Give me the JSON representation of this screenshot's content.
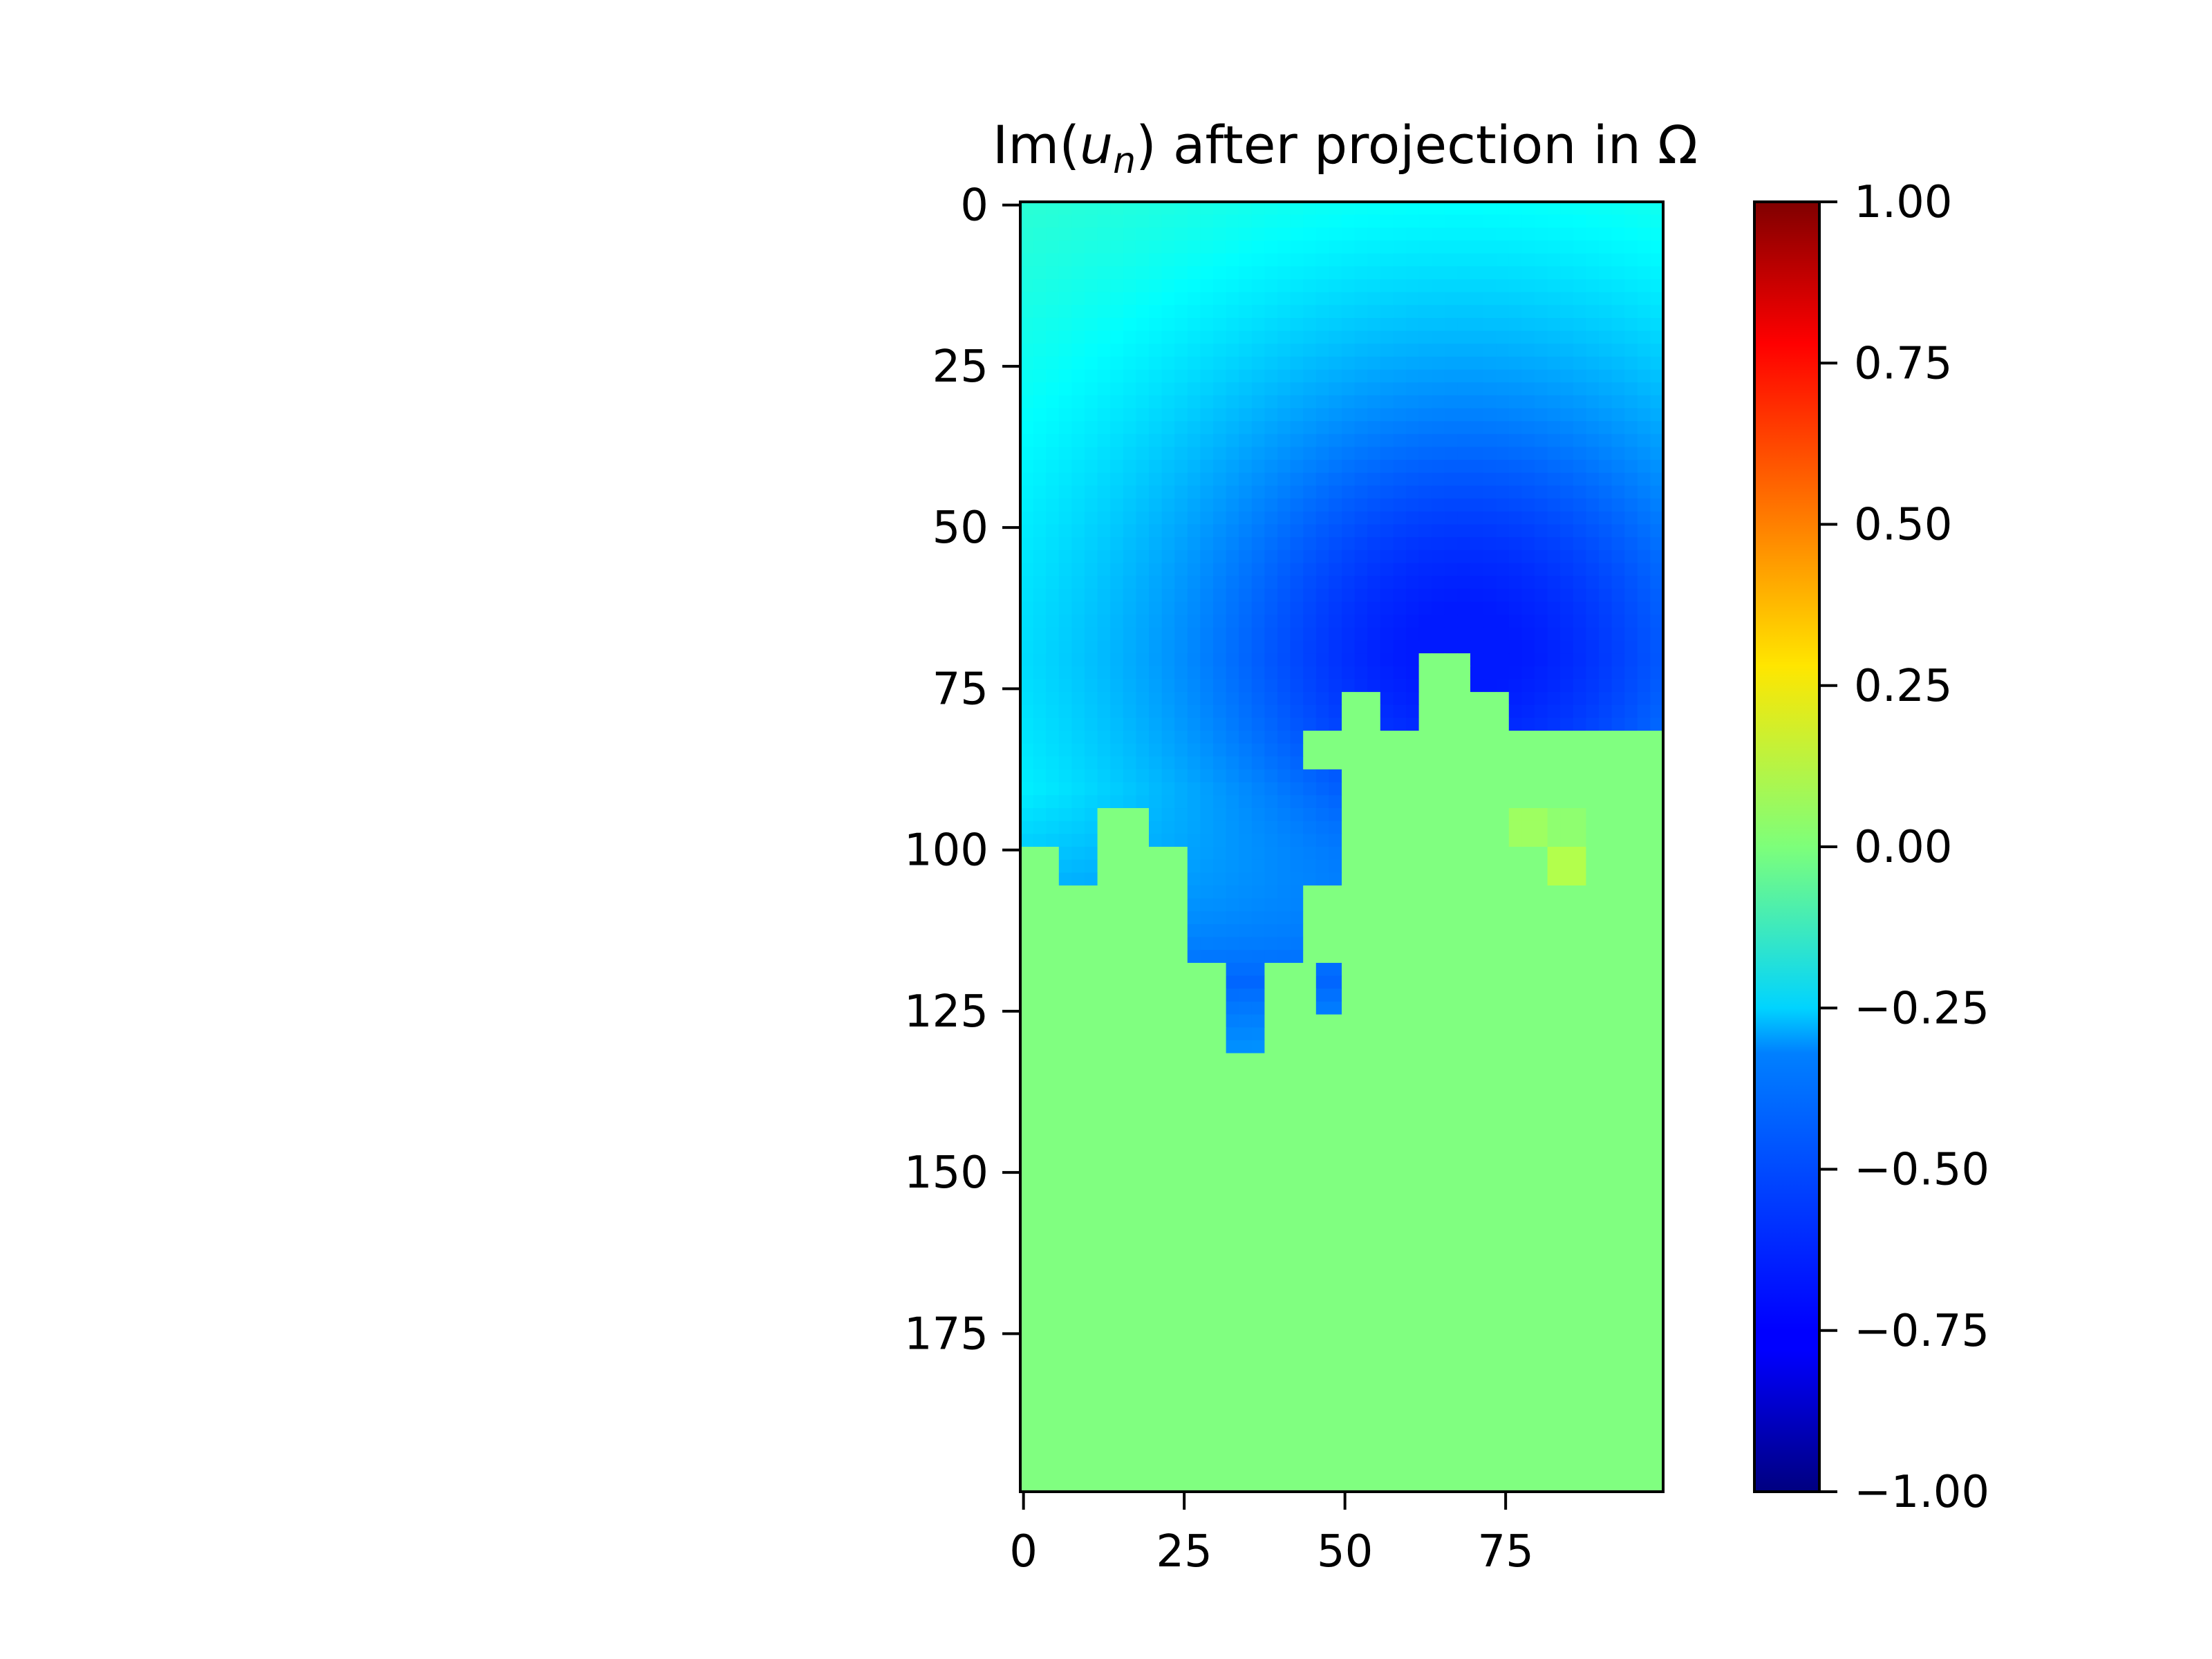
{
  "chart_data": {
    "type": "heatmap",
    "title": {
      "prefix": "Im(",
      "symbol": "u",
      "subscript": "n",
      "suffix": ") after projection in Ω"
    },
    "xlabel": "",
    "ylabel": "",
    "x_range": [
      0,
      99
    ],
    "y_range": [
      0,
      199
    ],
    "y_axis_inverted": true,
    "x_ticks": [
      "0",
      "25",
      "50",
      "75"
    ],
    "x_tick_values": [
      0,
      25,
      50,
      75
    ],
    "y_ticks": [
      "0",
      "25",
      "50",
      "75",
      "100",
      "125",
      "150",
      "175"
    ],
    "y_tick_values": [
      0,
      25,
      50,
      75,
      100,
      125,
      150,
      175
    ],
    "colormap": "jet",
    "colorbar": {
      "range": [
        -1.0,
        1.0
      ],
      "ticks": [
        "1.00",
        "0.75",
        "0.50",
        "0.25",
        "0.00",
        "−0.25",
        "−0.50",
        "−0.75",
        "−1.00"
      ],
      "tick_values": [
        1.0,
        0.75,
        0.5,
        0.25,
        0.0,
        -0.25,
        -0.5,
        -0.75,
        -1.0
      ]
    },
    "field": {
      "background_value": 0.0,
      "well_center": [
        68,
        68
      ],
      "well_min_value": -0.58,
      "top_edge_value": -0.15,
      "boundary_row": 100,
      "max_region_value": 0.1
    },
    "region_outside_omega": {
      "value": 0.0,
      "cells": [
        [
          0,
          100,
          6,
          200
        ],
        [
          6,
          106,
          12,
          200
        ],
        [
          12,
          94,
          20,
          200
        ],
        [
          20,
          100,
          25,
          106
        ],
        [
          20,
          106,
          25,
          200
        ],
        [
          25,
          118,
          32,
          125
        ],
        [
          25,
          125,
          32,
          200
        ],
        [
          32,
          131,
          38,
          200
        ],
        [
          38,
          118,
          45,
          200
        ],
        [
          45,
          125,
          50,
          200
        ],
        [
          50,
          118,
          56,
          200
        ],
        [
          56,
          200,
          56,
          200
        ]
      ],
      "bands": [
        [
          44,
          81,
          50,
          87
        ],
        [
          50,
          75,
          56,
          81
        ],
        [
          50,
          81,
          62,
          200
        ],
        [
          56,
          81,
          62,
          87
        ],
        [
          62,
          69,
          70,
          200
        ],
        [
          70,
          75,
          76,
          200
        ],
        [
          70,
          81,
          100,
          200
        ],
        [
          44,
          106,
          50,
          112
        ],
        [
          44,
          112,
          50,
          118
        ],
        [
          50,
          100,
          56,
          112
        ],
        [
          50,
          94,
          56,
          100
        ],
        [
          56,
          87,
          62,
          200
        ],
        [
          76,
          87,
          82,
          94
        ],
        [
          76,
          94,
          82,
          200
        ],
        [
          82,
          100,
          100,
          200
        ],
        [
          88,
          94,
          94,
          100
        ],
        [
          94,
          100,
          100,
          100
        ]
      ],
      "accent_patches": [
        {
          "cell": [
            76,
            94,
            82,
            100
          ],
          "value": 0.06
        },
        {
          "cell": [
            82,
            100,
            88,
            106
          ],
          "value": 0.1
        },
        {
          "cell": [
            82,
            94,
            88,
            100
          ],
          "value": 0.03
        }
      ]
    }
  }
}
